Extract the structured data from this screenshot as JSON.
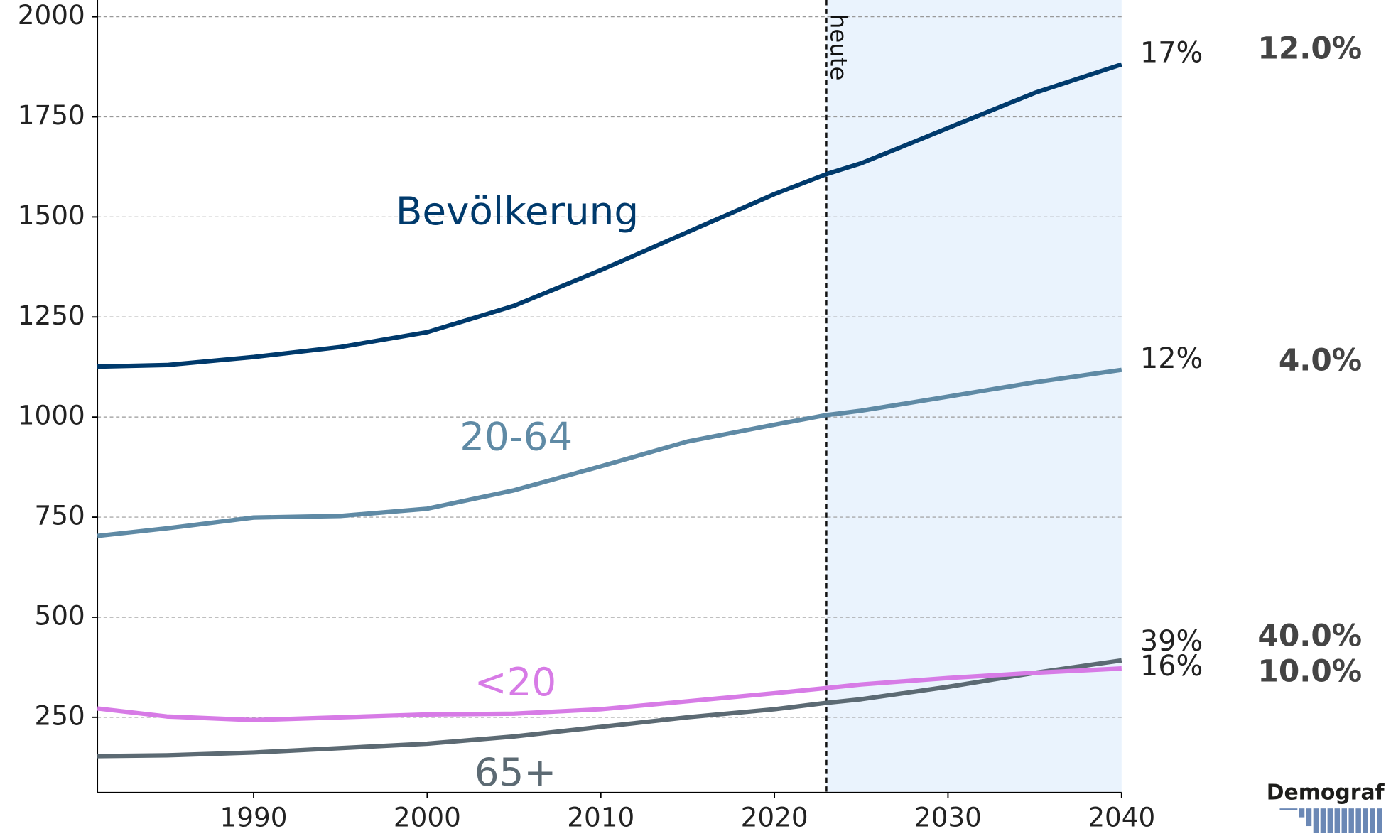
{
  "chart_data": {
    "type": "line",
    "x": [
      1981,
      1985,
      1990,
      1995,
      2000,
      2005,
      2010,
      2015,
      2020,
      2023,
      2025,
      2030,
      2035,
      2040
    ],
    "series": [
      {
        "name": "Bevölkerung",
        "color": "#003a6c",
        "values": [
          1126,
          1130,
          1150,
          1175,
          1212,
          1278,
          1367,
          1462,
          1557,
          1607,
          1634,
          1722,
          1810,
          1881
        ],
        "end_labels": [
          "17%",
          "12.0%"
        ]
      },
      {
        "name": "20-64",
        "color": "#5f8aa5",
        "values": [
          703,
          722,
          749,
          753,
          771,
          817,
          877,
          939,
          981,
          1005,
          1016,
          1051,
          1087,
          1118
        ],
        "end_labels": [
          "12%",
          "4.0%"
        ]
      },
      {
        "name": "65+",
        "color": "#5c6a73",
        "values": [
          153,
          155,
          162,
          173,
          184,
          202,
          226,
          250,
          270,
          286,
          295,
          326,
          361,
          392
        ],
        "end_labels": [
          "39%",
          "40.0%"
        ]
      },
      {
        "name": "<20",
        "color": "#d77be6",
        "values": [
          272,
          252,
          243,
          250,
          257,
          259,
          270,
          290,
          310,
          323,
          332,
          348,
          361,
          372
        ],
        "end_labels": [
          "16%",
          "10.0%"
        ]
      }
    ],
    "xlim": [
      1981,
      2040
    ],
    "xticks": [
      1990,
      2000,
      2010,
      2020,
      2030,
      2040
    ],
    "ylim": [
      62,
      2000
    ],
    "yticks": [
      250,
      500,
      750,
      1000,
      1250,
      1500,
      1750,
      2000
    ],
    "grid": true,
    "today": 2023,
    "today_label": "heute",
    "forecast_color": "#eaf3fd",
    "logo": "Demograf"
  }
}
